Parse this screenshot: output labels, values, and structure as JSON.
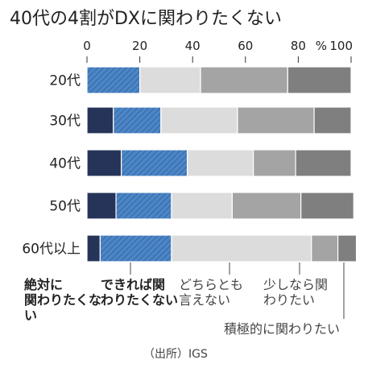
{
  "chart_data": {
    "type": "bar",
    "orientation": "horizontal",
    "stacked": true,
    "title": "40代の4割がDXに関わりたくない",
    "unit": "%",
    "xlim": [
      0,
      100
    ],
    "x_ticks": [
      "0",
      "20",
      "40",
      "60",
      "80",
      "100"
    ],
    "categories": [
      "20代",
      "30代",
      "40代",
      "50代",
      "60代以上"
    ],
    "series": [
      {
        "name": "絶対に関わりたくない",
        "color": "#27345a",
        "pattern": "none",
        "values": [
          0,
          10,
          13,
          11,
          5
        ]
      },
      {
        "name": "できれば関わりたくない",
        "color": "#4c86c6",
        "pattern": "hatched",
        "values": [
          20,
          18,
          25,
          21,
          27
        ]
      },
      {
        "name": "どちらとも言えない",
        "color": "#dcdcdc",
        "pattern": "none",
        "values": [
          23,
          29,
          25,
          23,
          53
        ]
      },
      {
        "name": "少しなら関わりたい",
        "color": "#a4a4a4",
        "pattern": "none",
        "values": [
          33,
          29,
          16,
          26,
          10
        ]
      },
      {
        "name": "積極的に関わりたい",
        "color": "#7f7f7f",
        "pattern": "none",
        "values": [
          24,
          14,
          21,
          20,
          7
        ]
      }
    ],
    "source": "（出所）IGS"
  }
}
